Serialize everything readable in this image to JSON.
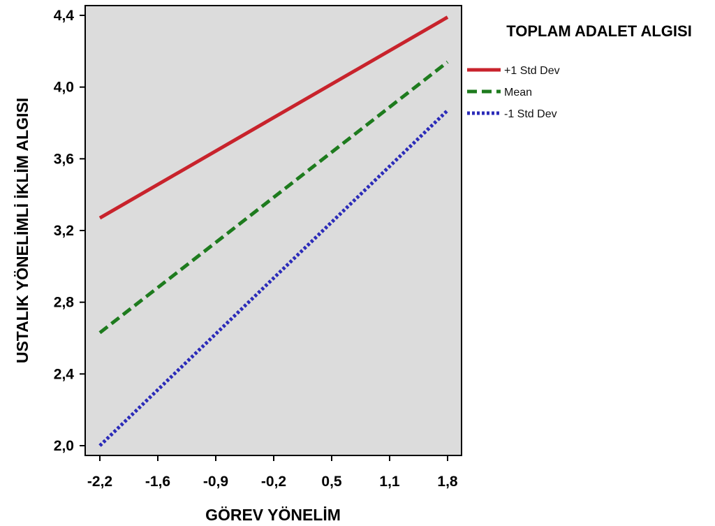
{
  "chart_data": {
    "type": "line",
    "x_ticks": [
      "-2,2",
      "-1,6",
      "-0,9",
      "-0,2",
      "0,5",
      "1,1",
      "1,8"
    ],
    "y_ticks": [
      "2,0",
      "2,4",
      "2,8",
      "3,2",
      "3,6",
      "4,0",
      "4,4"
    ],
    "x": [
      -2.2,
      1.8
    ],
    "xlim": [
      -2.2,
      1.8
    ],
    "ylim": [
      2.0,
      4.4
    ],
    "xlabel": "GÖREV YÖNELİM",
    "ylabel": "USTALIK YÖNELİMLİ İKLİM ALGISI",
    "legend_title": "TOPLAM ADALET ALGISI",
    "legend_position": "right",
    "plot_background": "#dcdcdc",
    "grid": false,
    "series": [
      {
        "name": "+1 Std Dev",
        "values": [
          3.27,
          4.39
        ],
        "color": "#c8232c",
        "style": "solid"
      },
      {
        "name": "Mean",
        "values": [
          2.63,
          4.14
        ],
        "color": "#1e7b1e",
        "style": "dashed"
      },
      {
        "name": "-1 Std Dev",
        "values": [
          2.0,
          3.87
        ],
        "color": "#2b2bb8",
        "style": "dotted"
      }
    ]
  }
}
